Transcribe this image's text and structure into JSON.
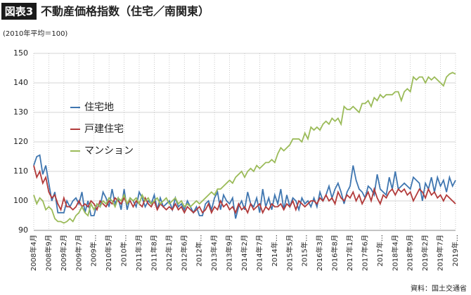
{
  "chart_data": {
    "type": "line",
    "badge": "図表3",
    "title": "不動産価格指数（住宅／南関東）",
    "subtitle": "(2010年平均＝100)",
    "source": "資料：国土交通省",
    "categories": [
      "2008年4月",
      null,
      null,
      null,
      null,
      "2008年9月",
      null,
      null,
      null,
      null,
      "2009年2月",
      null,
      null,
      null,
      null,
      "2009年7月",
      null,
      null,
      null,
      null,
      "2009年…",
      null,
      null,
      null,
      null,
      "2010年5月",
      null,
      null,
      null,
      null,
      "2010年…",
      null,
      null,
      null,
      null,
      "2011年3月",
      null,
      null,
      null,
      null,
      "2011年8月",
      null,
      null,
      null,
      null,
      "2012年1月",
      null,
      null,
      null,
      null,
      "2012年6月",
      null,
      null,
      null,
      null,
      "2012年…",
      null,
      null,
      null,
      null,
      "2013年4月",
      null,
      null,
      null,
      null,
      "2013年9月",
      null,
      null,
      null,
      null,
      "2014年2月",
      null,
      null,
      null,
      null,
      "2014年7月",
      null,
      null,
      null,
      null,
      "2014年…",
      null,
      null,
      null,
      null,
      "2015年5月",
      null,
      null,
      null,
      null,
      "2015年…",
      null,
      null,
      null,
      null,
      "2016年3月",
      null,
      null,
      null,
      null,
      "2016年8月",
      null,
      null,
      null,
      null,
      "2017年1月",
      null,
      null,
      null,
      null,
      "2017年6月",
      null,
      null,
      null,
      null,
      "2017年…",
      null,
      null,
      null,
      null,
      "2018年4月",
      null,
      null,
      null,
      null,
      "2018年9月",
      null,
      null,
      null,
      null,
      "2019年2月",
      null,
      null,
      null,
      null,
      "2019年7月",
      null,
      null,
      null,
      null,
      "2019年…"
    ],
    "series": [
      {
        "name": "住宅地",
        "color": "#3f76b0",
        "values": [
          112,
          115,
          115.5,
          109,
          112,
          106,
          100,
          103,
          96,
          96,
          96,
          100,
          98,
          100,
          101,
          99,
          103,
          96,
          100,
          95,
          95,
          99,
          98,
          103,
          101,
          98,
          104,
          99,
          101,
          97,
          104,
          97,
          101,
          100,
          98,
          103,
          101,
          98,
          100,
          99,
          102,
          97,
          101,
          98,
          99,
          100,
          97,
          101,
          98,
          99,
          97,
          100,
          98,
          96,
          98,
          95,
          95,
          99,
          100,
          97,
          101,
          103,
          97,
          102,
          100,
          99,
          101,
          94,
          98,
          100,
          97,
          103,
          99,
          98,
          101,
          96,
          104,
          98,
          101,
          97,
          102,
          99,
          104,
          97,
          102,
          98,
          101,
          100,
          97,
          101,
          99,
          100,
          98,
          101,
          98,
          103,
          100,
          102,
          105,
          101,
          104,
          106,
          103,
          99,
          103,
          105,
          112,
          107,
          104,
          103,
          101,
          105,
          104,
          102,
          109,
          104,
          103,
          102,
          108,
          104,
          110,
          104,
          105,
          106,
          105,
          104,
          108,
          107,
          106,
          100,
          106,
          104,
          108,
          103,
          108,
          105,
          107,
          103,
          108,
          105,
          107
        ]
      },
      {
        "name": "戸建住宅",
        "color": "#b23a3a",
        "values": [
          112,
          108,
          110,
          106,
          108,
          103,
          101,
          102,
          99,
          97,
          101,
          98,
          98,
          97,
          98,
          100,
          98,
          99,
          98,
          100,
          99,
          97,
          100,
          99,
          98,
          100,
          99,
          101,
          100,
          99,
          101,
          99,
          100,
          98,
          100,
          99,
          98,
          101,
          99,
          98,
          100,
          97,
          99,
          98,
          97,
          98,
          97,
          99,
          97,
          98,
          96,
          98,
          97,
          96,
          97,
          98,
          96,
          97,
          99,
          96,
          98,
          97,
          100,
          98,
          99,
          97,
          98,
          96,
          99,
          97,
          98,
          96,
          99,
          97,
          98,
          99,
          96,
          98,
          97,
          99,
          98,
          98,
          99,
          97,
          99,
          98,
          100,
          97,
          100,
          99,
          98,
          99,
          100,
          100,
          99,
          101,
          100,
          102,
          100,
          101,
          99,
          103,
          101,
          100,
          102,
          101,
          103,
          100,
          102,
          99,
          101,
          103,
          100,
          104,
          101,
          99,
          102,
          101,
          103,
          104,
          102,
          104,
          103,
          104,
          102,
          103,
          100,
          102,
          104,
          103,
          101,
          104,
          102,
          103,
          101,
          102,
          100,
          102,
          101,
          100,
          99
        ]
      },
      {
        "name": "マンション",
        "color": "#9bbb59",
        "values": [
          102,
          99,
          101,
          100,
          97,
          98,
          97,
          94,
          93,
          93,
          92.5,
          93,
          94,
          93,
          95,
          96,
          98,
          96,
          95,
          99,
          97,
          99,
          98,
          100,
          99,
          101,
          100,
          98,
          101,
          100,
          102,
          99,
          101,
          100,
          101,
          99,
          102,
          100,
          101,
          99,
          100,
          101,
          99,
          100,
          101,
          99,
          100,
          101,
          99,
          100,
          98,
          99,
          98,
          99,
          100,
          99,
          100,
          101,
          102,
          103,
          102,
          104,
          104,
          105,
          106,
          107,
          106,
          108,
          109,
          110,
          108,
          110,
          111,
          110,
          112,
          111,
          112,
          113,
          113,
          114,
          113,
          116,
          118,
          117,
          118,
          119,
          121,
          121,
          121,
          120,
          123,
          121,
          125,
          124,
          125,
          124,
          126,
          127,
          126,
          128,
          127,
          128,
          126,
          132,
          131,
          131,
          132,
          131,
          130,
          133,
          133,
          134,
          132,
          135,
          134,
          136,
          135,
          136,
          136,
          136,
          137,
          137,
          134,
          137,
          138,
          137,
          142,
          141,
          142,
          142,
          140,
          142,
          141,
          142,
          141,
          140,
          139,
          142,
          143,
          143.5,
          143
        ]
      }
    ],
    "ylim": [
      90,
      150
    ],
    "yticks": [
      90,
      100,
      110,
      120,
      130,
      140,
      150
    ],
    "grid": true,
    "legend": "upper left"
  }
}
